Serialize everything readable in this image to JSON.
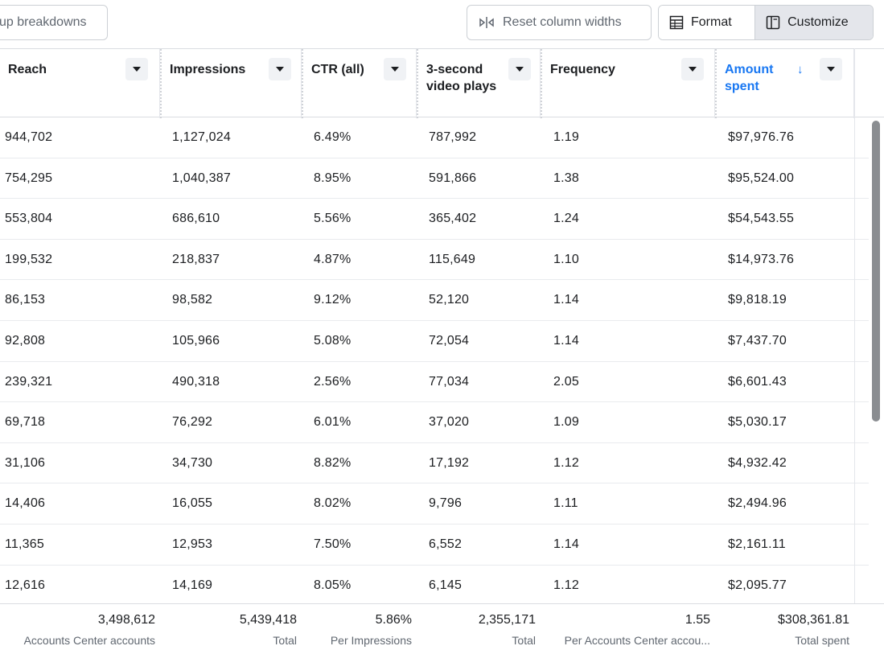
{
  "toolbar": {
    "breakdowns_label": "up breakdowns",
    "reset_label": "Reset column widths",
    "format_label": "Format",
    "customize_label": "Customize"
  },
  "columns": [
    {
      "title": "Reach"
    },
    {
      "title": "Impressions"
    },
    {
      "title": "CTR (all)"
    },
    {
      "title": "3-second video plays"
    },
    {
      "title": "Frequency"
    },
    {
      "title": "Amount spent",
      "sorted": "descending"
    }
  ],
  "rows": [
    [
      "944,702",
      "1,127,024",
      "6.49%",
      "787,992",
      "1.19",
      "$97,976.76"
    ],
    [
      "754,295",
      "1,040,387",
      "8.95%",
      "591,866",
      "1.38",
      "$95,524.00"
    ],
    [
      "553,804",
      "686,610",
      "5.56%",
      "365,402",
      "1.24",
      "$54,543.55"
    ],
    [
      "199,532",
      "218,837",
      "4.87%",
      "115,649",
      "1.10",
      "$14,973.76"
    ],
    [
      "86,153",
      "98,582",
      "9.12%",
      "52,120",
      "1.14",
      "$9,818.19"
    ],
    [
      "92,808",
      "105,966",
      "5.08%",
      "72,054",
      "1.14",
      "$7,437.70"
    ],
    [
      "239,321",
      "490,318",
      "2.56%",
      "77,034",
      "2.05",
      "$6,601.43"
    ],
    [
      "69,718",
      "76,292",
      "6.01%",
      "37,020",
      "1.09",
      "$5,030.17"
    ],
    [
      "31,106",
      "34,730",
      "8.82%",
      "17,192",
      "1.12",
      "$4,932.42"
    ],
    [
      "14,406",
      "16,055",
      "8.02%",
      "9,796",
      "1.11",
      "$2,494.96"
    ],
    [
      "11,365",
      "12,953",
      "7.50%",
      "6,552",
      "1.14",
      "$2,161.11"
    ],
    [
      "12,616",
      "14,169",
      "8.05%",
      "6,145",
      "1.12",
      "$2,095.77"
    ]
  ],
  "totals": [
    {
      "value": "3,498,612",
      "label": "Accounts Center accounts"
    },
    {
      "value": "5,439,418",
      "label": "Total"
    },
    {
      "value": "5.86%",
      "label": "Per Impressions"
    },
    {
      "value": "2,355,171",
      "label": "Total"
    },
    {
      "value": "1.55",
      "label": "Per Accounts Center accou..."
    },
    {
      "value": "$308,361.81",
      "label": "Total spent"
    }
  ],
  "colors": {
    "accent": "#1877f2",
    "border": "#dadde1",
    "selected_segment": "#e4e6eb",
    "scrollbar": "#8a8d91"
  }
}
